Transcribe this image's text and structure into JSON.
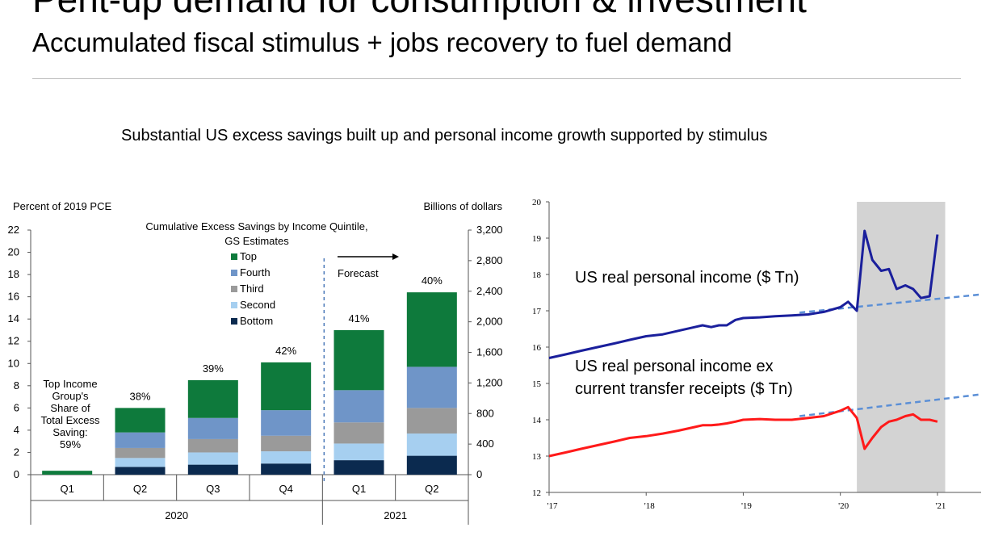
{
  "header": {
    "title": "Pent-up demand for consumption & investment",
    "subtitle": "Accumulated fiscal stimulus + jobs recovery to fuel demand",
    "caption": "Substantial US excess savings built up and personal income growth supported by stimulus"
  },
  "chart_data": [
    {
      "type": "bar",
      "stacked": true,
      "title": "Cumulative  Excess Savings  by Income Quintile,",
      "subtitle": "GS Estimates",
      "left_axis_label": "Percent  of 2019 PCE",
      "right_axis_label": "Billions of dollars",
      "ylim": [
        0,
        22
      ],
      "yticks": [
        "0",
        "2",
        "4",
        "6",
        "8",
        "10",
        "12",
        "14",
        "16",
        "18",
        "20",
        "22"
      ],
      "right_ylim": [
        0,
        3200
      ],
      "right_yticks": [
        "0",
        "400",
        "800",
        "1,200",
        "1,600",
        "2,000",
        "2,400",
        "2,800",
        "3,200"
      ],
      "categories": [
        "Q1",
        "Q2",
        "Q3",
        "Q4",
        "Q1",
        "Q2"
      ],
      "years": [
        {
          "label": "2020",
          "span": [
            0,
            3
          ]
        },
        {
          "label": "2021",
          "span": [
            4,
            5
          ]
        }
      ],
      "forecast_label": "Forecast",
      "forecast_after_index": 3,
      "series": [
        {
          "name": "Bottom",
          "color": "#0b2a4f",
          "values": [
            0,
            0.7,
            0.9,
            1.0,
            1.3,
            1.7
          ]
        },
        {
          "name": "Second",
          "color": "#a6cff0",
          "values": [
            0,
            0.8,
            1.1,
            1.1,
            1.5,
            2.0
          ]
        },
        {
          "name": "Third",
          "color": "#9a9a9a",
          "values": [
            0,
            0.9,
            1.2,
            1.4,
            1.9,
            2.3
          ]
        },
        {
          "name": "Fourth",
          "color": "#6f95c8",
          "values": [
            0,
            1.4,
            1.9,
            2.3,
            2.9,
            3.7
          ]
        },
        {
          "name": "Top",
          "color": "#0e7a3c",
          "values": [
            0.35,
            2.2,
            3.4,
            4.3,
            5.4,
            6.7
          ]
        }
      ],
      "top_share_labels": [
        "",
        "38%",
        "39%",
        "42%",
        "41%",
        "40%"
      ],
      "annotation": [
        "Top Income",
        "Group's",
        "Share of",
        "Total Excess",
        "Saving:",
        "59%"
      ]
    },
    {
      "type": "line",
      "ylim": [
        12,
        20
      ],
      "yticks": [
        "12",
        "13",
        "14",
        "15",
        "16",
        "17",
        "18",
        "19",
        "20"
      ],
      "xlim": [
        2017,
        2021.45
      ],
      "xticks": [
        {
          "value": 2017,
          "label": "'17"
        },
        {
          "value": 2018,
          "label": "'18"
        },
        {
          "value": 2019,
          "label": "'19"
        },
        {
          "value": 2020,
          "label": "'20"
        },
        {
          "value": 2021,
          "label": "'21"
        }
      ],
      "shaded_region": [
        2020.17,
        2021.08
      ],
      "series": [
        {
          "name": "US real personal income ($ Tn)",
          "color": "#1a1f9c",
          "x": [
            2017,
            2017.17,
            2017.33,
            2017.5,
            2017.67,
            2017.83,
            2018,
            2018.17,
            2018.33,
            2018.5,
            2018.58,
            2018.67,
            2018.75,
            2018.83,
            2018.92,
            2019,
            2019.17,
            2019.33,
            2019.5,
            2019.67,
            2019.83,
            2020,
            2020.08,
            2020.17,
            2020.25,
            2020.33,
            2020.42,
            2020.5,
            2020.58,
            2020.67,
            2020.75,
            2020.83,
            2020.92,
            2021
          ],
          "y": [
            15.7,
            15.8,
            15.9,
            16.0,
            16.1,
            16.2,
            16.3,
            16.35,
            16.45,
            16.55,
            16.6,
            16.55,
            16.6,
            16.6,
            16.75,
            16.8,
            16.82,
            16.85,
            16.87,
            16.9,
            16.97,
            17.1,
            17.25,
            17.0,
            19.2,
            18.4,
            18.1,
            18.15,
            17.6,
            17.7,
            17.6,
            17.35,
            17.4,
            19.1
          ]
        },
        {
          "name": "US real personal income ex current transfer receipts ($ Tn)",
          "color": "#ff1a1a",
          "x": [
            2017,
            2017.17,
            2017.33,
            2017.5,
            2017.67,
            2017.83,
            2018,
            2018.17,
            2018.33,
            2018.5,
            2018.58,
            2018.67,
            2018.75,
            2018.83,
            2018.92,
            2019,
            2019.17,
            2019.33,
            2019.5,
            2019.67,
            2019.83,
            2020,
            2020.08,
            2020.17,
            2020.25,
            2020.33,
            2020.42,
            2020.5,
            2020.58,
            2020.67,
            2020.75,
            2020.83,
            2020.92,
            2021
          ],
          "y": [
            13.0,
            13.1,
            13.2,
            13.3,
            13.4,
            13.5,
            13.55,
            13.62,
            13.7,
            13.8,
            13.85,
            13.85,
            13.87,
            13.9,
            13.95,
            14.0,
            14.02,
            14.0,
            14.0,
            14.05,
            14.1,
            14.25,
            14.35,
            14.05,
            13.2,
            13.5,
            13.8,
            13.95,
            14.0,
            14.1,
            14.15,
            14.0,
            14.0,
            13.95
          ]
        }
      ],
      "trend_lines": [
        {
          "color": "#5b8fd6",
          "x": [
            2019.58,
            2021.45
          ],
          "y": [
            16.95,
            17.45
          ]
        },
        {
          "color": "#5b8fd6",
          "x": [
            2019.58,
            2021.45
          ],
          "y": [
            14.1,
            14.7
          ]
        }
      ],
      "labels": {
        "income": "US real personal income ($ Tn)",
        "ex_line1": "US real personal income ex",
        "ex_line2": "current transfer receipts ($ Tn)"
      }
    }
  ]
}
